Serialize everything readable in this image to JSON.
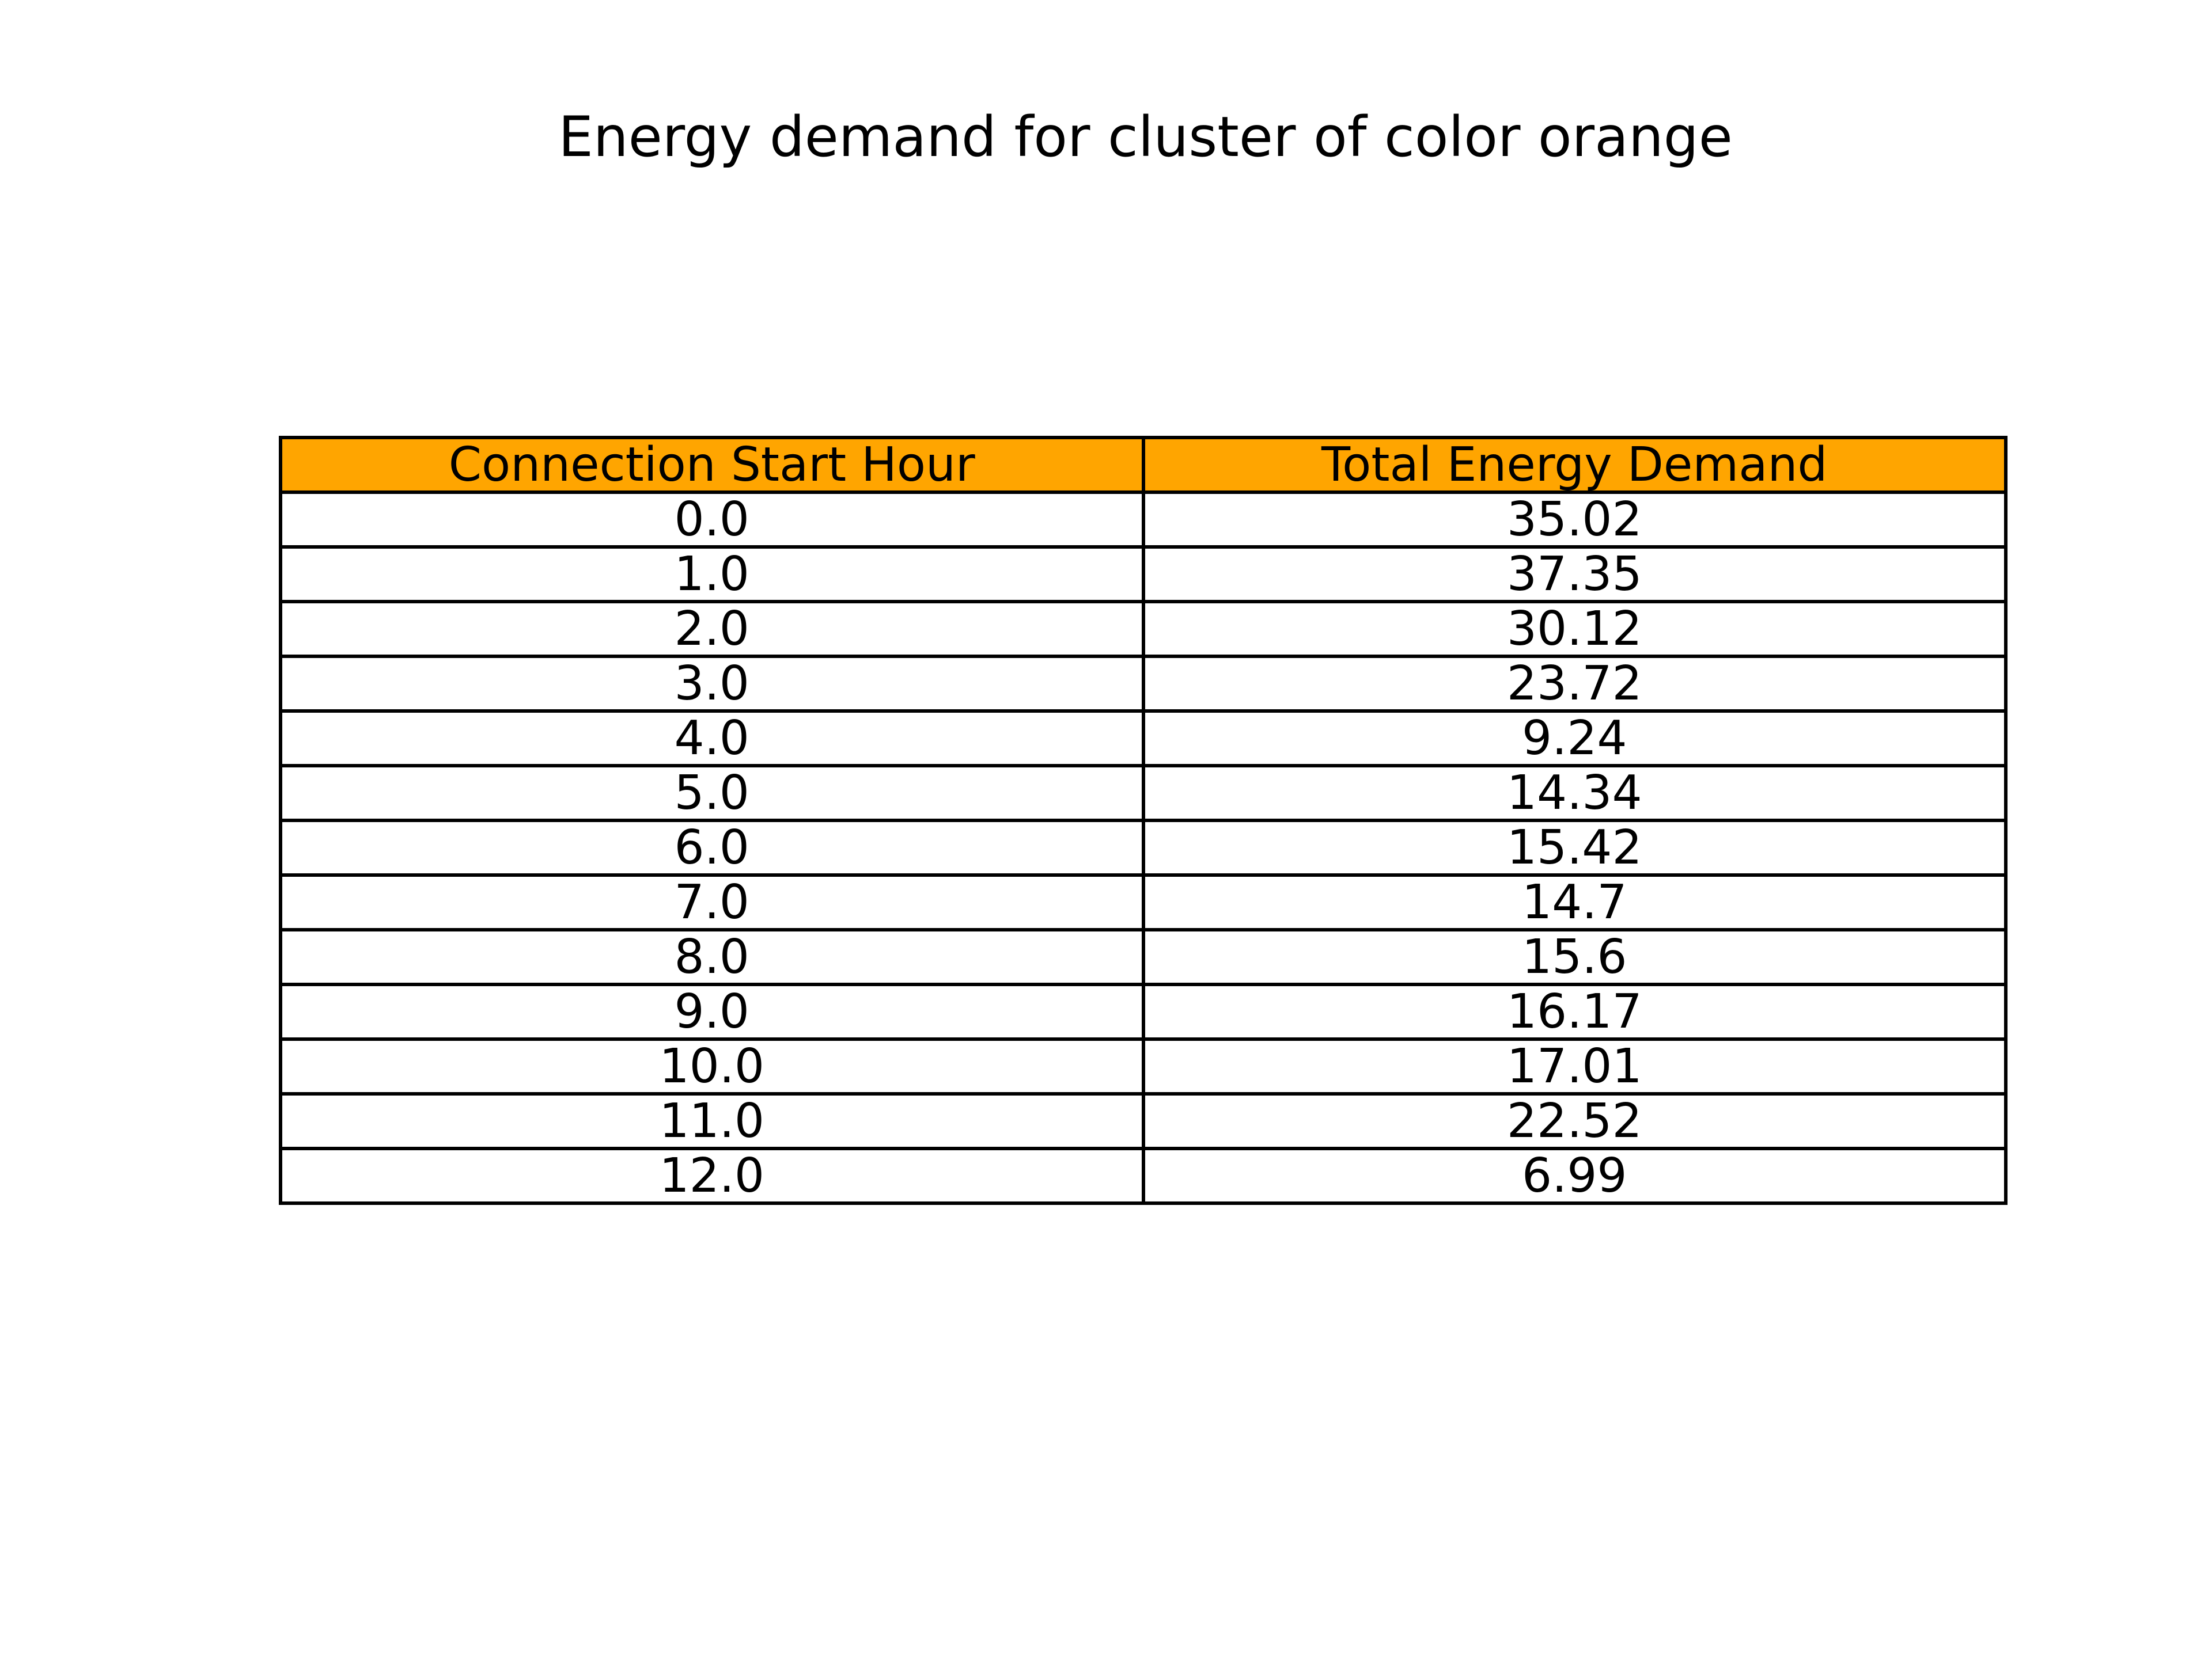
{
  "chart_data": {
    "type": "table",
    "title": "Energy demand for cluster of color orange",
    "header_color": "#ffa500",
    "columns": [
      "Connection Start Hour",
      "Total Energy Demand"
    ],
    "rows": [
      [
        "0.0",
        "35.02"
      ],
      [
        "1.0",
        "37.35"
      ],
      [
        "2.0",
        "30.12"
      ],
      [
        "3.0",
        "23.72"
      ],
      [
        "4.0",
        "9.24"
      ],
      [
        "5.0",
        "14.34"
      ],
      [
        "6.0",
        "15.42"
      ],
      [
        "7.0",
        "14.7"
      ],
      [
        "8.0",
        "15.6"
      ],
      [
        "9.0",
        "16.17"
      ],
      [
        "10.0",
        "17.01"
      ],
      [
        "11.0",
        "22.52"
      ],
      [
        "12.0",
        "6.99"
      ]
    ]
  }
}
